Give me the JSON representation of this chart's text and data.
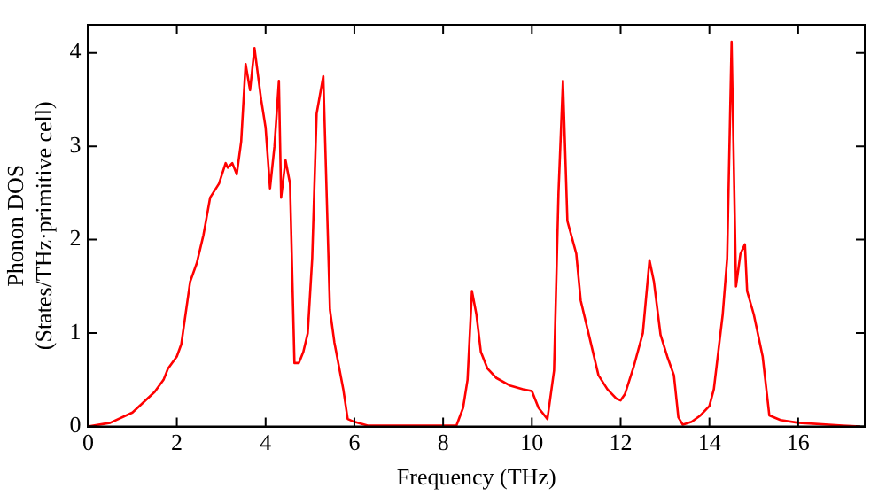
{
  "chart_data": {
    "type": "line",
    "xlabel": "Frequency (THz)",
    "ylabel": "Phonon DOS\n(States/THz·primitive cell)",
    "xlim": [
      0,
      17.5
    ],
    "xticks": [
      0,
      2,
      4,
      6,
      8,
      10,
      12,
      14,
      16
    ],
    "ylim": [
      0,
      4.3
    ],
    "yticks": [
      0,
      1,
      2,
      3,
      4
    ],
    "grid": false,
    "legend": false,
    "marker": "none",
    "line_style": "solid",
    "x": [
      0,
      0.5,
      1.0,
      1.5,
      1.7,
      1.8,
      2.0,
      2.1,
      2.3,
      2.45,
      2.6,
      2.75,
      2.95,
      3.1,
      3.15,
      3.25,
      3.35,
      3.45,
      3.55,
      3.65,
      3.75,
      3.9,
      4.0,
      4.1,
      4.2,
      4.3,
      4.35,
      4.45,
      4.55,
      4.65,
      4.75,
      4.85,
      4.95,
      5.05,
      5.15,
      5.3,
      5.45,
      5.55,
      5.75,
      5.85,
      6.0,
      6.3,
      8.3,
      8.45,
      8.55,
      8.65,
      8.75,
      8.85,
      9.0,
      9.2,
      9.5,
      9.8,
      10.0,
      10.15,
      10.35,
      10.5,
      10.6,
      10.7,
      10.8,
      11.0,
      11.1,
      11.3,
      11.5,
      11.7,
      11.9,
      12.0,
      12.1,
      12.3,
      12.5,
      12.65,
      12.75,
      12.9,
      13.05,
      13.2,
      13.3,
      13.4,
      13.6,
      13.8,
      14.0,
      14.1,
      14.2,
      14.3,
      14.4,
      14.5,
      14.6,
      14.7,
      14.8,
      14.85,
      15.0,
      15.2,
      15.35,
      15.6,
      16.0,
      17.0,
      17.4
    ],
    "series": [
      {
        "color": "#ff0000",
        "values": [
          0,
          0.04,
          0.15,
          0.37,
          0.5,
          0.62,
          0.75,
          0.88,
          1.55,
          1.75,
          2.05,
          2.45,
          2.6,
          2.82,
          2.77,
          2.82,
          2.7,
          3.05,
          3.88,
          3.6,
          4.05,
          3.5,
          3.2,
          2.55,
          3.0,
          3.7,
          2.45,
          2.85,
          2.6,
          0.68,
          0.68,
          0.8,
          1.0,
          1.8,
          3.35,
          3.75,
          1.25,
          0.9,
          0.4,
          0.08,
          0.05,
          0.01,
          0.01,
          0.2,
          0.5,
          1.45,
          1.2,
          0.8,
          0.62,
          0.52,
          0.44,
          0.4,
          0.38,
          0.2,
          0.08,
          0.6,
          2.5,
          3.7,
          2.2,
          1.85,
          1.35,
          0.95,
          0.55,
          0.4,
          0.3,
          0.28,
          0.35,
          0.65,
          1.0,
          1.78,
          1.55,
          0.98,
          0.75,
          0.55,
          0.1,
          0.02,
          0.05,
          0.12,
          0.22,
          0.4,
          0.8,
          1.2,
          1.8,
          4.12,
          1.5,
          1.85,
          1.95,
          1.45,
          1.2,
          0.75,
          0.12,
          0.07,
          0.04,
          0.01,
          0
        ]
      }
    ]
  }
}
